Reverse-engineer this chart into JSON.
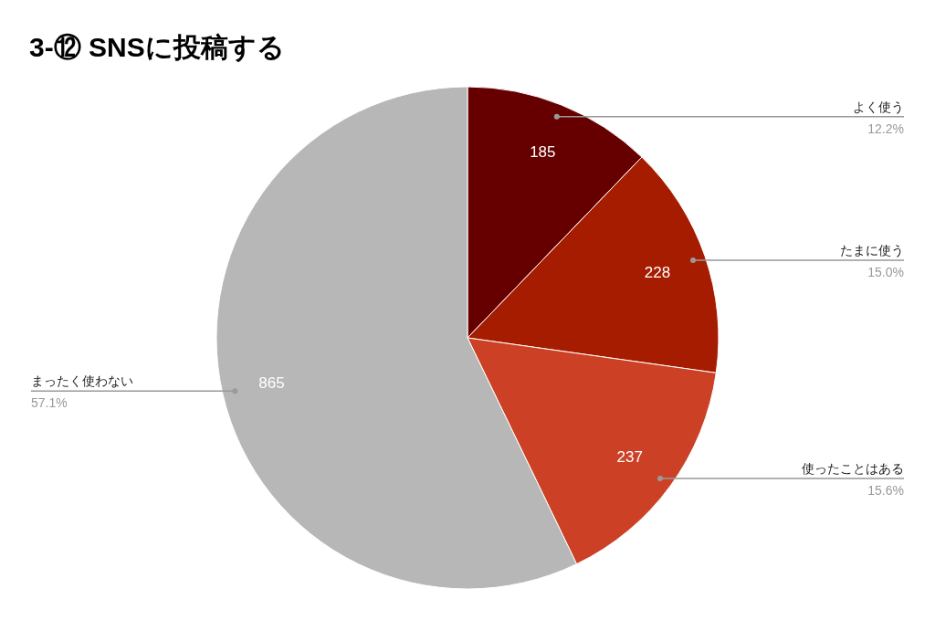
{
  "chart_data": {
    "type": "pie",
    "title": "3-⑫  SNSに投稿する",
    "categories": [
      "よく使う",
      "たまに使う",
      "使ったことはある",
      "まったく使わない"
    ],
    "values": [
      12.2,
      15.0,
      15.6,
      57.1
    ],
    "annotations": [
      "185",
      "228",
      "237",
      "865"
    ],
    "colors": [
      "#660000",
      "#a61c00",
      "#cc4125",
      "#b7b7b7"
    ],
    "value_labels": [
      "12.2%",
      "15.0%",
      "15.6%",
      "57.1%"
    ],
    "legend": false
  }
}
